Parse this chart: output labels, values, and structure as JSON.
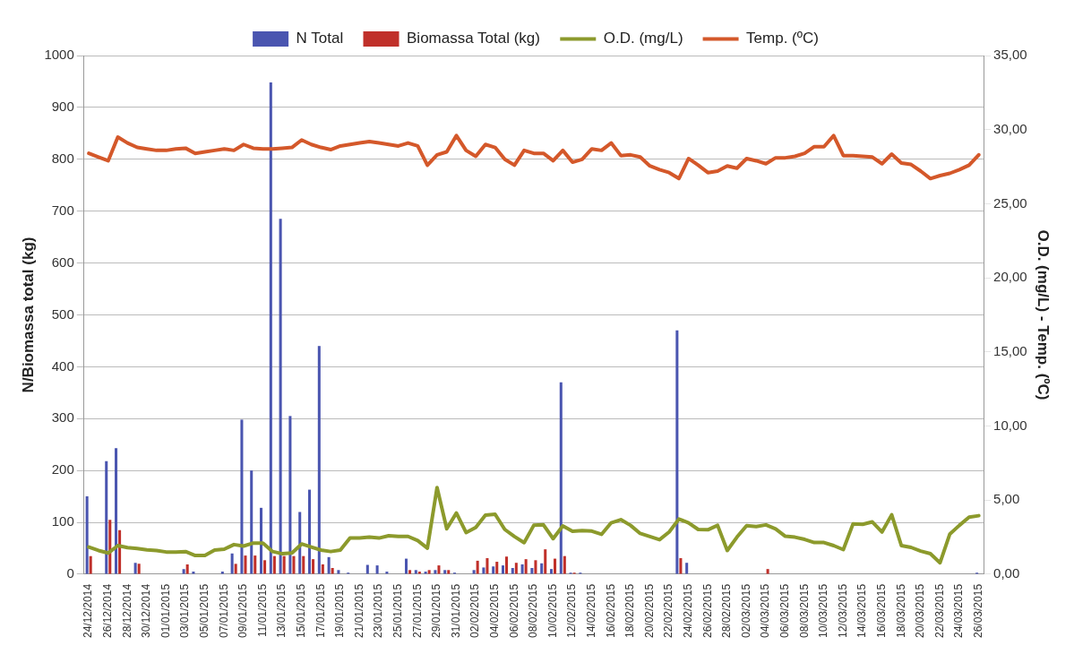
{
  "chart_data": {
    "type": "bar",
    "categories": [
      "24/12/2014",
      null,
      "26/12/2014",
      null,
      "28/12/2014",
      null,
      "30/12/2014",
      null,
      "01/01/2015",
      null,
      "03/01/2015",
      null,
      "05/01/2015",
      null,
      "07/01/2015",
      null,
      "09/01/2015",
      null,
      "11/01/2015",
      null,
      "13/01/2015",
      null,
      "15/01/2015",
      null,
      "17/01/2015",
      null,
      "19/01/2015",
      null,
      "21/01/2015",
      null,
      "23/01/2015",
      null,
      "25/01/2015",
      null,
      "27/01/2015",
      null,
      "29/01/2015",
      null,
      "31/01/2015",
      null,
      "02/02/2015",
      null,
      "04/02/2015",
      null,
      "06/02/2015",
      null,
      "08/02/2015",
      null,
      "10/02/2015",
      null,
      "12/02/2015",
      null,
      "14/02/2015",
      null,
      "16/02/2015",
      null,
      "18/02/2015",
      null,
      "20/02/2015",
      null,
      "22/02/2015",
      null,
      "24/02/2015",
      null,
      "26/02/2015",
      null,
      "28/02/2015",
      null,
      "02/03/2015",
      null,
      "04/03/2015",
      null,
      "06/03/2015",
      null,
      "08/03/2015",
      null,
      "10/03/2015",
      null,
      "12/03/2015",
      null,
      "14/03/2015",
      null,
      "16/03/2015",
      null,
      "18/03/2015",
      null,
      "20/03/2015",
      null,
      "22/03/2015",
      null,
      "24/03/2015",
      null,
      "26/03/2015"
    ],
    "series": [
      {
        "name": "N Total",
        "color": "#4a55b0",
        "values": [
          150,
          null,
          218,
          243,
          null,
          22,
          null,
          null,
          null,
          null,
          10,
          5,
          null,
          null,
          5,
          40,
          298,
          200,
          128,
          948,
          685,
          305,
          120,
          163,
          440,
          33,
          8,
          3,
          null,
          18,
          17,
          5,
          null,
          30,
          8,
          5,
          8,
          8,
          3,
          null,
          8,
          13,
          15,
          17,
          12,
          19,
          12,
          21,
          10,
          370,
          3,
          3,
          null,
          null,
          null,
          null,
          null,
          null,
          null,
          null,
          null,
          470,
          22,
          null,
          null,
          null,
          null,
          null,
          null,
          null,
          null,
          null,
          null,
          null,
          null,
          null,
          null,
          null,
          null,
          null,
          null,
          null,
          null,
          null,
          null,
          null,
          null,
          null,
          null,
          null,
          null,
          null,
          3
        ]
      },
      {
        "name": "Biomassa Total (kg)",
        "color": "#c0302a",
        "values": [
          35,
          null,
          105,
          85,
          null,
          20,
          null,
          null,
          null,
          null,
          19,
          null,
          null,
          null,
          null,
          20,
          36,
          36,
          27,
          35,
          35,
          35,
          35,
          29,
          19,
          12,
          null,
          null,
          null,
          null,
          null,
          null,
          null,
          8,
          5,
          8,
          17,
          8,
          null,
          null,
          26,
          31,
          24,
          34,
          22,
          29,
          27,
          48,
          30,
          35,
          3,
          null,
          null,
          null,
          null,
          null,
          null,
          null,
          null,
          null,
          null,
          31,
          null,
          null,
          null,
          null,
          null,
          null,
          null,
          null,
          10,
          null,
          null,
          null,
          null,
          null,
          null,
          null,
          null,
          null,
          null,
          null,
          null,
          null,
          null,
          null,
          null,
          null,
          null,
          null,
          null,
          null,
          null
        ]
      },
      {
        "name": "O.D. (mg/L)",
        "type": "line",
        "axis": "y2",
        "color": "#8c9a2c",
        "values": [
          1.83,
          1.6,
          1.43,
          1.93,
          1.8,
          1.73,
          1.65,
          1.6,
          1.5,
          1.5,
          1.53,
          1.26,
          1.26,
          1.63,
          1.69,
          2.0,
          1.9,
          2.1,
          2.1,
          1.53,
          1.38,
          1.43,
          2.04,
          1.83,
          1.63,
          1.53,
          1.63,
          2.44,
          2.45,
          2.5,
          2.44,
          2.6,
          2.55,
          2.55,
          2.27,
          1.76,
          5.85,
          3.06,
          4.13,
          2.81,
          3.16,
          3.99,
          4.05,
          3.02,
          2.54,
          2.13,
          3.3,
          3.33,
          2.4,
          3.26,
          2.9,
          2.95,
          2.91,
          2.69,
          3.47,
          3.68,
          3.3,
          2.75,
          2.54,
          2.33,
          2.85,
          3.72,
          3.47,
          3.02,
          3.0,
          3.3,
          1.6,
          2.5,
          3.28,
          3.22,
          3.33,
          3.06,
          2.56,
          2.5,
          2.35,
          2.14,
          2.14,
          1.93,
          1.66,
          3.39,
          3.37,
          3.53,
          2.85,
          4.01,
          1.93,
          1.81,
          1.56,
          1.39,
          0.77,
          2.7,
          3.3,
          3.85,
          3.95
        ]
      },
      {
        "name": "Temp. (ºC)",
        "type": "line",
        "axis": "y2",
        "color": "#d4582a",
        "values": [
          28.4,
          28.15,
          27.9,
          29.5,
          29.1,
          28.8,
          28.7,
          28.6,
          28.6,
          28.7,
          28.75,
          28.4,
          28.5,
          28.6,
          28.7,
          28.6,
          29.0,
          28.75,
          28.7,
          28.7,
          28.75,
          28.8,
          29.3,
          29.0,
          28.8,
          28.65,
          28.9,
          29.0,
          29.1,
          29.2,
          29.1,
          29.0,
          28.9,
          29.1,
          28.9,
          27.6,
          28.3,
          28.5,
          29.6,
          28.6,
          28.2,
          29.0,
          28.8,
          28.0,
          27.6,
          28.6,
          28.4,
          28.4,
          27.9,
          28.6,
          27.8,
          28.0,
          28.7,
          28.6,
          29.1,
          28.25,
          28.3,
          28.15,
          27.55,
          27.3,
          27.1,
          26.7,
          28.05,
          27.6,
          27.1,
          27.2,
          27.55,
          27.4,
          28.05,
          27.9,
          27.7,
          28.1,
          28.1,
          28.2,
          28.4,
          28.85,
          28.85,
          29.6,
          28.25,
          28.25,
          28.2,
          28.15,
          27.7,
          28.35,
          27.75,
          27.65,
          27.2,
          26.7,
          26.9,
          27.05,
          27.3,
          27.6,
          28.3
        ]
      }
    ],
    "ylabel": "N/Biomassa total (kg)",
    "y2label": "O.D. (mg/L) - Temp. (ºC)",
    "ylim": [
      0,
      1000
    ],
    "yticks": [
      0,
      100,
      200,
      300,
      400,
      500,
      600,
      700,
      800,
      900,
      1000
    ],
    "y2lim": [
      0,
      35
    ],
    "y2ticks": [
      {
        "value": 0,
        "label": "0,00"
      },
      {
        "value": 5,
        "label": "5,00"
      },
      {
        "value": 10,
        "label": "10,00"
      },
      {
        "value": 15,
        "label": "15,00"
      },
      {
        "value": 20,
        "label": "20,00"
      },
      {
        "value": 25,
        "label": "25,00"
      },
      {
        "value": 30,
        "label": "30,00"
      },
      {
        "value": 35,
        "label": "35,00"
      }
    ],
    "grid": "y",
    "legend": "top",
    "marker": "none",
    "line_style": "solid"
  }
}
